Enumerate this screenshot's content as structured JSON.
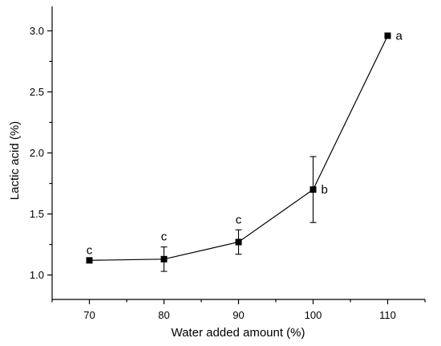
{
  "chart_data": {
    "type": "line",
    "title": "",
    "xlabel": "Water added amount (%)",
    "ylabel": "Lactic acid (%)",
    "xlim": [
      65,
      115
    ],
    "ylim": [
      0.8,
      3.2
    ],
    "x_ticks": [
      70,
      80,
      90,
      100,
      110
    ],
    "y_ticks": [
      1.0,
      1.5,
      2.0,
      2.5,
      3.0
    ],
    "y_tick_labels": [
      "1.0",
      "1.5",
      "2.0",
      "2.5",
      "3.0"
    ],
    "grid": false,
    "legend": "none",
    "series": [
      {
        "x": [
          70,
          80,
          90,
          100,
          110
        ],
        "y": [
          1.12,
          1.13,
          1.27,
          1.7,
          2.96
        ],
        "error": [
          0.0,
          0.1,
          0.1,
          0.27,
          0.0
        ],
        "labels": [
          "c",
          "c",
          "c",
          "b",
          "a"
        ],
        "marker": "square",
        "color": "#000000"
      }
    ]
  }
}
